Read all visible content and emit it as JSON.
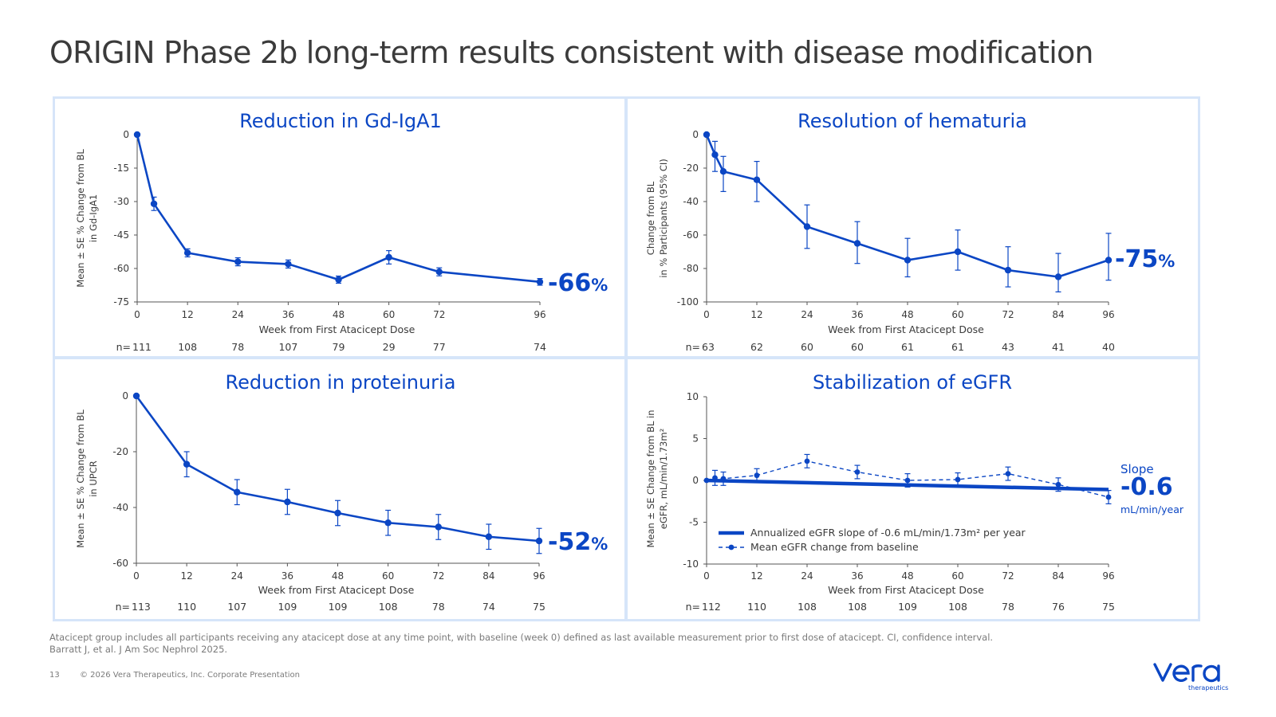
{
  "title": "ORIGIN Phase 2b long-term results consistent with disease modification",
  "colors": {
    "accent": "#0b46c4",
    "panel_border": "#d6e5f9",
    "text": "#3a3a3a"
  },
  "chart_data": [
    {
      "id": "gd-iga1",
      "type": "line",
      "title": "Reduction in Gd-IgA1",
      "ylabel": [
        "Mean ± SE % Change from BL",
        "in Gd-IgA1"
      ],
      "xlabel": "Week from First Atacicept Dose",
      "ylim": [
        -75,
        0
      ],
      "yticks": [
        0,
        -15,
        -30,
        -45,
        -60,
        -75
      ],
      "xlim": [
        0,
        96
      ],
      "xticks": [
        0,
        12,
        24,
        36,
        48,
        60,
        72,
        96
      ],
      "series": [
        {
          "x": [
            0,
            4,
            12,
            24,
            36,
            48,
            60,
            72,
            96
          ],
          "y": [
            0,
            -31,
            -53,
            -57,
            -58,
            -65,
            -55,
            -61.5,
            -66
          ],
          "err_low": [
            0,
            3,
            1.8,
            1.8,
            1.8,
            1.6,
            3,
            1.8,
            1.5
          ],
          "err_high": [
            0,
            3,
            1.8,
            1.8,
            1.8,
            1.6,
            3,
            1.8,
            1.5
          ]
        }
      ],
      "n_counts": {
        "label": "n=",
        "x": [
          0,
          12,
          24,
          36,
          48,
          60,
          72,
          96
        ],
        "values": [
          "111",
          "108",
          "78",
          "107",
          "79",
          "29",
          "77",
          "74"
        ]
      },
      "callout": {
        "value": "-66",
        "unit": "%"
      }
    },
    {
      "id": "hematuria",
      "type": "line",
      "title": "Resolution of hematuria",
      "ylabel": [
        "Change from BL",
        "in % Participants (95% CI)"
      ],
      "xlabel": "Week from First Atacicept Dose",
      "ylim": [
        -100,
        0
      ],
      "yticks": [
        0,
        -20,
        -40,
        -60,
        -80,
        -100
      ],
      "xlim": [
        0,
        96
      ],
      "xticks": [
        0,
        12,
        24,
        36,
        48,
        60,
        72,
        84,
        96
      ],
      "series": [
        {
          "x": [
            0,
            2,
            4,
            12,
            24,
            36,
            48,
            60,
            72,
            84,
            96
          ],
          "y": [
            0,
            -12,
            -22,
            -27,
            -55,
            -65,
            -75,
            -70,
            -81,
            -85,
            -75
          ],
          "err_low": [
            0,
            10,
            12,
            13,
            13,
            12,
            10,
            11,
            10,
            9,
            12
          ],
          "err_high": [
            0,
            8,
            9,
            11,
            13,
            13,
            13,
            13,
            14,
            14,
            16
          ]
        }
      ],
      "n_counts": {
        "label": "n=",
        "x": [
          0,
          12,
          24,
          36,
          48,
          60,
          72,
          84,
          96
        ],
        "values": [
          "63",
          "62",
          "60",
          "60",
          "61",
          "61",
          "43",
          "41",
          "40"
        ]
      },
      "callout": {
        "value": "-75",
        "unit": "%"
      }
    },
    {
      "id": "proteinuria",
      "type": "line",
      "title": "Reduction in proteinuria",
      "ylabel": [
        "Mean ± SE % Change from BL",
        "in UPCR"
      ],
      "xlabel": "Week from First Atacicept Dose",
      "ylim": [
        -60,
        0
      ],
      "yticks": [
        0,
        -20,
        -40,
        -60
      ],
      "xlim": [
        0,
        96
      ],
      "xticks": [
        0,
        12,
        24,
        36,
        48,
        60,
        72,
        84,
        96
      ],
      "series": [
        {
          "x": [
            0,
            12,
            24,
            36,
            48,
            60,
            72,
            84,
            96
          ],
          "y": [
            0,
            -24.5,
            -34.5,
            -38,
            -42,
            -45.5,
            -47,
            -50.5,
            -52
          ],
          "err_low": [
            0,
            4.5,
            4.5,
            4.5,
            4.5,
            4.5,
            4.5,
            4.5,
            4.5
          ],
          "err_high": [
            0,
            4.5,
            4.5,
            4.5,
            4.5,
            4.5,
            4.5,
            4.5,
            4.5
          ]
        }
      ],
      "n_counts": {
        "label": "n=",
        "x": [
          0,
          12,
          24,
          36,
          48,
          60,
          72,
          84,
          96
        ],
        "values": [
          "113",
          "110",
          "107",
          "109",
          "109",
          "108",
          "78",
          "74",
          "75"
        ]
      },
      "callout": {
        "value": "-52",
        "unit": "%"
      }
    },
    {
      "id": "egfr",
      "type": "line",
      "title": "Stabilization of eGFR",
      "ylabel": [
        "Mean ± SE Change from BL in",
        "eGFR, mL/min/1.73m²"
      ],
      "xlabel": "Week from First Atacicept Dose",
      "ylim": [
        -10,
        10
      ],
      "yticks": [
        10,
        5,
        0,
        -5,
        -10
      ],
      "xlim": [
        0,
        96
      ],
      "xticks": [
        0,
        12,
        24,
        36,
        48,
        60,
        72,
        84,
        96
      ],
      "series": [
        {
          "name": "Annualized eGFR slope of -0.6 mL/min/1.73m² per year",
          "style": "thick-solid",
          "x": [
            0,
            96
          ],
          "y": [
            0,
            -1.1
          ]
        },
        {
          "name": "Mean eGFR change from baseline",
          "style": "dashed-markers",
          "x": [
            0,
            2,
            4,
            12,
            24,
            36,
            48,
            60,
            72,
            84,
            96
          ],
          "y": [
            0,
            0.3,
            0.2,
            0.6,
            2.3,
            1.0,
            0,
            0.1,
            0.8,
            -0.5,
            -2
          ],
          "err_low": [
            0,
            0.9,
            0.8,
            0.8,
            0.8,
            0.8,
            0.8,
            0.8,
            0.8,
            0.8,
            0.8
          ],
          "err_high": [
            0,
            0.9,
            0.8,
            0.8,
            0.8,
            0.8,
            0.8,
            0.8,
            0.8,
            0.8,
            0.8
          ]
        }
      ],
      "legend": {
        "position": "bottom-left"
      },
      "n_counts": {
        "label": "n=",
        "x": [
          0,
          12,
          24,
          36,
          48,
          60,
          72,
          84,
          96
        ],
        "values": [
          "112",
          "110",
          "108",
          "108",
          "109",
          "108",
          "78",
          "76",
          "75"
        ]
      },
      "slope_callout": {
        "label": "Slope",
        "value": "-0.6",
        "unit": "mL/min/year"
      }
    }
  ],
  "footnote": {
    "line1": "Atacicept group includes all participants receiving any atacicept dose at any time point, with baseline (week 0) defined as last available measurement prior to first dose of atacicept. CI, confidence interval.",
    "line2": "Barratt J, et al. J Am Soc Nephrol 2025."
  },
  "footer": {
    "page_number": "13",
    "copyright": "© 2026 Vera Therapeutics, Inc. Corporate Presentation"
  },
  "logo": {
    "name": "vera",
    "tagline": "therapeutics"
  }
}
